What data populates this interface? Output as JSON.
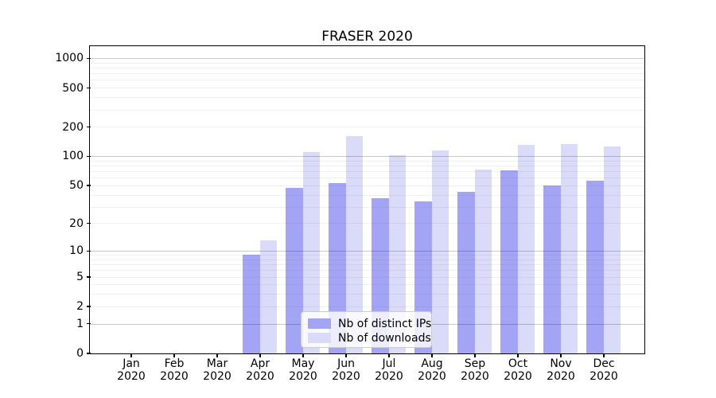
{
  "chart_data": {
    "type": "bar",
    "title": "FRASER 2020",
    "categories": [
      "Jan",
      "Feb",
      "Mar",
      "Apr",
      "May",
      "Jun",
      "Jul",
      "Aug",
      "Sep",
      "Oct",
      "Nov",
      "Dec"
    ],
    "category_year": "2020",
    "series": [
      {
        "name": "Nb of distinct IPs",
        "color": "#a4a4f4",
        "values": [
          0,
          0,
          0,
          9,
          47,
          53,
          37,
          34,
          43,
          71,
          50,
          56
        ]
      },
      {
        "name": "Nb of downloads",
        "color": "#dadaf9",
        "values": [
          0,
          0,
          0,
          13,
          110,
          160,
          102,
          115,
          73,
          130,
          133,
          126
        ]
      }
    ],
    "xlabel": "",
    "ylabel": "",
    "yscale": "log1p",
    "ytick_values": [
      0,
      1,
      2,
      5,
      10,
      20,
      50,
      100,
      200,
      500,
      1000
    ],
    "ytick_labels": [
      "0",
      "1",
      "2",
      "5",
      "10",
      "20",
      "50",
      "100",
      "200",
      "500",
      "1000"
    ],
    "ylim": [
      0,
      1340
    ],
    "grid": {
      "major_at": [
        1,
        10,
        100,
        1000
      ],
      "minor_subs": [
        2,
        3,
        4,
        5,
        6,
        7,
        8,
        9
      ]
    },
    "legend": {
      "location": "lower center, inside axes",
      "entries": [
        "Nb of distinct IPs",
        "Nb of downloads"
      ]
    }
  }
}
